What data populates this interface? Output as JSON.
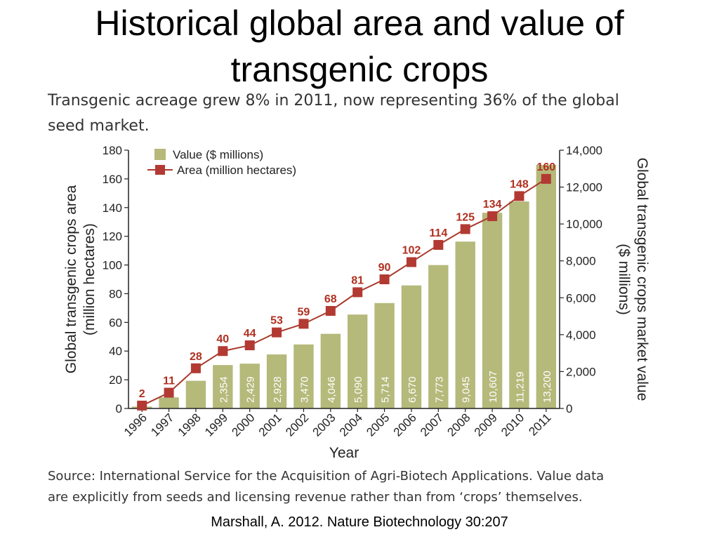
{
  "slide": {
    "title_lines": [
      "Historical global area and value of",
      "transgenic crops"
    ],
    "subtitle_lines": [
      "Transgenic acreage grew 8% in 2011, now representing 36% of the global",
      "seed market."
    ],
    "source_lines": [
      "Source: International Service for the Acquisition of Agri-Biotech Applications. Value data",
      "are explicitly from seeds and licensing revenue rather than from ‘crops’ themselves."
    ],
    "citation": "Marshall, A. 2012. Nature Biotechnology 30:207"
  },
  "colors": {
    "bar": "#b5b97a",
    "line": "#a83a2c",
    "marker": "#b23a32",
    "area_label": "#b03020",
    "axis": "#222222",
    "value_label": "#ffffff"
  },
  "chart_data": {
    "type": "bar",
    "categories": [
      "1996",
      "1997",
      "1998",
      "1999",
      "2000",
      "2001",
      "2002",
      "2003",
      "2004",
      "2005",
      "2006",
      "2007",
      "2008",
      "2009",
      "2010",
      "2011"
    ],
    "series": [
      {
        "name": "Value ($ millions)",
        "type": "bar",
        "axis": "right",
        "values": [
          100,
          600,
          1500,
          2354,
          2429,
          2928,
          3470,
          4046,
          5090,
          5714,
          6670,
          7773,
          9045,
          10607,
          11219,
          13200
        ],
        "data_labels": [
          "",
          "",
          "",
          "2,354",
          "2,429",
          "2,928",
          "3,470",
          "4,046",
          "5,090",
          "5,714",
          "6,670",
          "7,773",
          "9,045",
          "10,607",
          "11,219",
          "13,200"
        ]
      },
      {
        "name": "Area (million hectares)",
        "type": "line",
        "axis": "left",
        "values": [
          2,
          11,
          28,
          40,
          44,
          53,
          59,
          68,
          81,
          90,
          102,
          114,
          125,
          134,
          148,
          160
        ],
        "data_labels": [
          "2",
          "11",
          "28",
          "40",
          "44",
          "53",
          "59",
          "68",
          "81",
          "90",
          "102",
          "114",
          "125",
          "134",
          "148",
          "160"
        ]
      }
    ],
    "xlabel": "Year",
    "ylabel_left_lines": [
      "Global transgenic crops area",
      "(million hectares)"
    ],
    "ylabel_right_lines": [
      "Global transgenic crops market value",
      "($ millions)"
    ],
    "ylim_left": [
      0,
      180
    ],
    "ylim_right": [
      0,
      14000
    ],
    "yticks_left": [
      "0",
      "20",
      "40",
      "60",
      "80",
      "100",
      "120",
      "140",
      "160",
      "180"
    ],
    "yticks_right": [
      "0",
      "2,000",
      "4,000",
      "6,000",
      "8,000",
      "10,000",
      "12,000",
      "14,000"
    ],
    "grid": false,
    "legend_position": "top-left"
  }
}
